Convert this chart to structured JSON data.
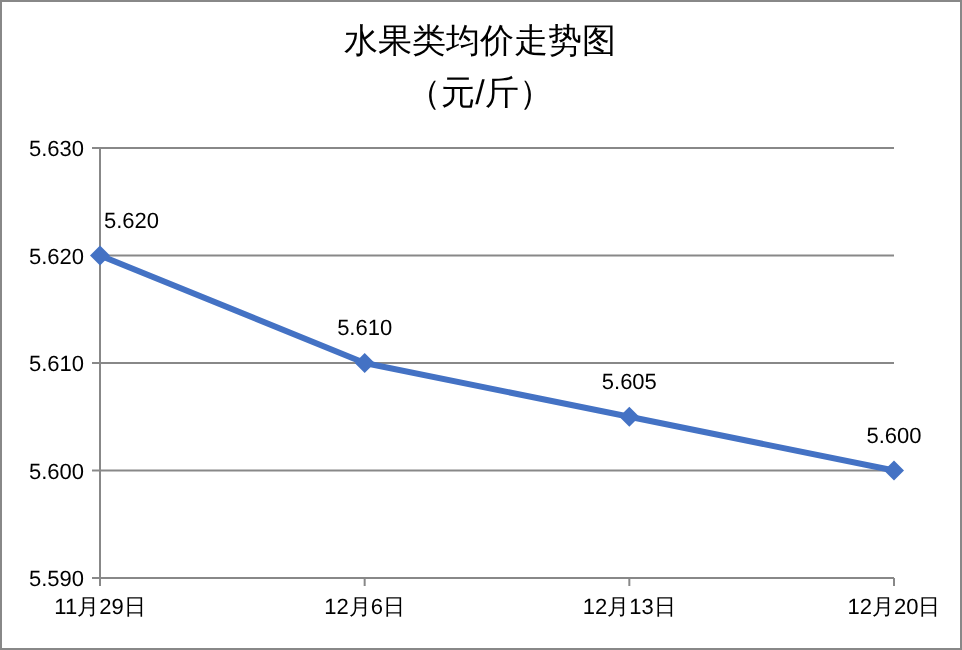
{
  "chart_data": {
    "type": "line",
    "title": "水果类均价走势图",
    "subtitle": "（元/斤）",
    "categories": [
      "11月29日",
      "12月6日",
      "12月13日",
      "12月20日"
    ],
    "series": [
      {
        "color": "#4472c4",
        "values": [
          5.62,
          5.61,
          5.605,
          5.6
        ],
        "value_labels": [
          "5.620",
          "5.610",
          "5.605",
          "5.600"
        ]
      }
    ],
    "ylim": [
      5.59,
      5.63
    ],
    "yticks": [
      {
        "value": 5.59,
        "label": "5.590"
      },
      {
        "value": 5.6,
        "label": "5.600"
      },
      {
        "value": 5.61,
        "label": "5.610"
      },
      {
        "value": 5.62,
        "label": "5.620"
      },
      {
        "value": 5.63,
        "label": "5.630"
      }
    ],
    "grid": "y",
    "marker": "diamond",
    "line_style": "solid"
  }
}
